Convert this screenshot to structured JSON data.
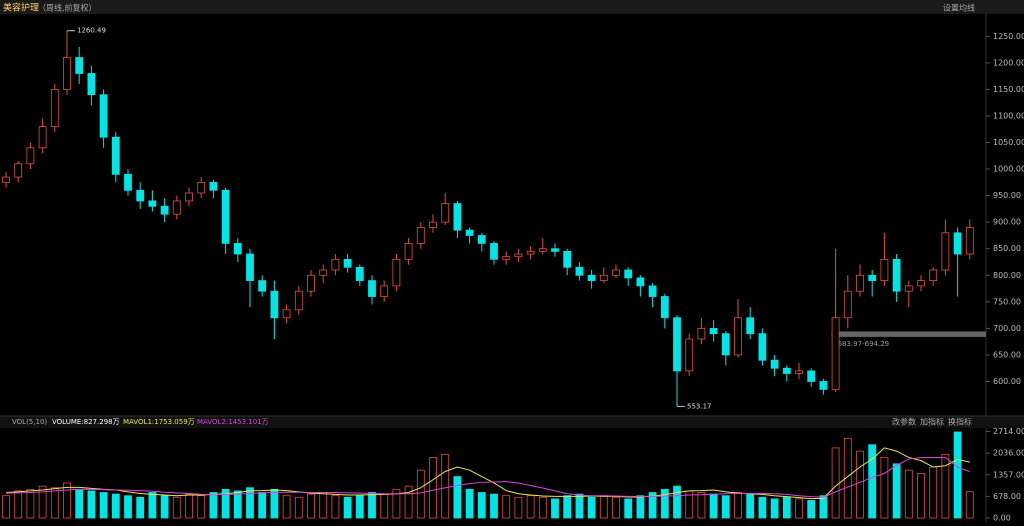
{
  "header": {
    "title": "美容护理",
    "subtitle": "（周线,前复权）",
    "settings": "设置均线"
  },
  "chart_data": {
    "type": "candlestick",
    "up_color": "#e84c3d",
    "down_color": "#00e5e5",
    "ylim": [
      535,
      1292
    ],
    "yticks": [
      {
        "value": 1250,
        "label": "1250.00"
      },
      {
        "value": 1200,
        "label": "1200.00"
      },
      {
        "value": 1150,
        "label": "1150.00"
      },
      {
        "value": 1100,
        "label": "1100.00"
      },
      {
        "value": 1050,
        "label": "1050.00"
      },
      {
        "value": 1000,
        "label": "1000.00"
      },
      {
        "value": 950,
        "label": "950.00"
      },
      {
        "value": 900,
        "label": "900.00"
      },
      {
        "value": 850,
        "label": "850.00"
      },
      {
        "value": 800,
        "label": "800.00"
      },
      {
        "value": 750,
        "label": "750.00"
      },
      {
        "value": 700,
        "label": "700.00"
      },
      {
        "value": 650,
        "label": "650.00"
      },
      {
        "value": 600,
        "label": "600.00"
      }
    ],
    "max_label": {
      "value": 1260.49,
      "label": "1260.49",
      "index": 5
    },
    "min_label": {
      "value": 553.17,
      "label": "553.17",
      "index": 55
    },
    "band": {
      "label": "683.97-694.29",
      "low": 683.97,
      "high": 694.29,
      "start": 68
    },
    "candles": [
      [
        975,
        995,
        965,
        985
      ],
      [
        985,
        1015,
        975,
        1010
      ],
      [
        1010,
        1050,
        1000,
        1040
      ],
      [
        1040,
        1095,
        1030,
        1080
      ],
      [
        1080,
        1160,
        1070,
        1150
      ],
      [
        1150,
        1260.49,
        1140,
        1210
      ],
      [
        1210,
        1230,
        1160,
        1180
      ],
      [
        1180,
        1195,
        1120,
        1140
      ],
      [
        1140,
        1150,
        1040,
        1060
      ],
      [
        1060,
        1070,
        975,
        990
      ],
      [
        990,
        1000,
        950,
        960
      ],
      [
        960,
        975,
        925,
        940
      ],
      [
        940,
        960,
        920,
        930
      ],
      [
        930,
        945,
        900,
        915
      ],
      [
        915,
        950,
        905,
        940
      ],
      [
        940,
        965,
        930,
        955
      ],
      [
        955,
        985,
        945,
        975
      ],
      [
        975,
        980,
        945,
        960
      ],
      [
        960,
        965,
        840,
        860
      ],
      [
        860,
        870,
        825,
        840
      ],
      [
        840,
        850,
        740,
        790
      ],
      [
        790,
        800,
        760,
        770
      ],
      [
        770,
        790,
        680,
        720
      ],
      [
        720,
        745,
        710,
        735
      ],
      [
        735,
        780,
        725,
        770
      ],
      [
        770,
        810,
        760,
        800
      ],
      [
        800,
        820,
        785,
        810
      ],
      [
        810,
        840,
        800,
        830
      ],
      [
        830,
        840,
        805,
        815
      ],
      [
        815,
        820,
        780,
        790
      ],
      [
        790,
        800,
        745,
        760
      ],
      [
        760,
        790,
        750,
        780
      ],
      [
        780,
        840,
        770,
        830
      ],
      [
        830,
        870,
        820,
        860
      ],
      [
        860,
        900,
        850,
        890
      ],
      [
        890,
        915,
        880,
        900
      ],
      [
        900,
        955,
        895,
        935
      ],
      [
        935,
        940,
        870,
        885
      ],
      [
        885,
        890,
        860,
        875
      ],
      [
        875,
        880,
        845,
        860
      ],
      [
        860,
        865,
        820,
        830
      ],
      [
        830,
        845,
        820,
        835
      ],
      [
        835,
        850,
        825,
        840
      ],
      [
        840,
        855,
        830,
        845
      ],
      [
        845,
        870,
        840,
        850
      ],
      [
        850,
        860,
        835,
        845
      ],
      [
        845,
        850,
        800,
        815
      ],
      [
        815,
        825,
        790,
        800
      ],
      [
        800,
        810,
        775,
        790
      ],
      [
        790,
        815,
        785,
        800
      ],
      [
        800,
        820,
        795,
        810
      ],
      [
        810,
        815,
        780,
        795
      ],
      [
        795,
        800,
        760,
        780
      ],
      [
        780,
        785,
        740,
        760
      ],
      [
        760,
        765,
        700,
        720
      ],
      [
        720,
        725,
        553.17,
        620
      ],
      [
        620,
        690,
        610,
        680
      ],
      [
        680,
        720,
        670,
        700
      ],
      [
        700,
        715,
        675,
        690
      ],
      [
        690,
        695,
        630,
        650
      ],
      [
        650,
        755,
        645,
        720
      ],
      [
        720,
        740,
        680,
        690
      ],
      [
        690,
        700,
        630,
        640
      ],
      [
        640,
        650,
        610,
        625
      ],
      [
        625,
        630,
        600,
        615
      ],
      [
        615,
        635,
        605,
        620
      ],
      [
        620,
        625,
        590,
        600
      ],
      [
        600,
        605,
        575,
        585
      ],
      [
        585,
        850,
        580,
        720
      ],
      [
        720,
        800,
        700,
        770
      ],
      [
        770,
        820,
        760,
        800
      ],
      [
        800,
        810,
        760,
        790
      ],
      [
        790,
        880,
        780,
        830
      ],
      [
        830,
        840,
        750,
        770
      ],
      [
        770,
        790,
        740,
        780
      ],
      [
        780,
        800,
        770,
        790
      ],
      [
        790,
        815,
        780,
        810
      ],
      [
        810,
        905,
        800,
        880
      ],
      [
        880,
        890,
        760,
        840
      ],
      [
        840,
        905,
        830,
        890
      ]
    ]
  },
  "volume_data": {
    "type": "bar",
    "indicator": "VOL(5,10)",
    "volume_label": "VOLUME:827.298万",
    "ma1_label": "MAVOL1:1753.059万",
    "ma2_label": "MAVOL2:1453.101万",
    "buttons": [
      "改参数",
      "加指标",
      "换指标"
    ],
    "ylim": [
      0,
      2950
    ],
    "yticks": [
      {
        "value": 2714,
        "label": "2714.00"
      },
      {
        "value": 2036,
        "label": "2036.00"
      },
      {
        "value": 1357,
        "label": "1357.00"
      },
      {
        "value": 678,
        "label": "678.00"
      },
      {
        "value": 0,
        "label": "0.00"
      }
    ],
    "values": [
      700,
      850,
      900,
      1000,
      950,
      1100,
      900,
      850,
      800,
      750,
      700,
      650,
      800,
      700,
      650,
      750,
      700,
      800,
      900,
      850,
      950,
      800,
      900,
      700,
      650,
      750,
      800,
      700,
      650,
      700,
      800,
      750,
      900,
      1000,
      1500,
      1900,
      2000,
      1300,
      900,
      800,
      750,
      700,
      650,
      700,
      650,
      600,
      700,
      750,
      650,
      700,
      650,
      600,
      700,
      800,
      900,
      1000,
      850,
      800,
      750,
      700,
      800,
      750,
      650,
      600,
      650,
      600,
      550,
      700,
      2200,
      2500,
      2100,
      2300,
      1900,
      1700,
      1500,
      1400,
      1600,
      2000,
      2700,
      827.298
    ],
    "series": [
      {
        "name": "MAVOL1",
        "color": "#e8e84a",
        "values": [
          800,
          820,
          850,
          880,
          920,
          960,
          960,
          930,
          900,
          880,
          820,
          770,
          740,
          720,
          700,
          720,
          720,
          740,
          760,
          800,
          850,
          860,
          880,
          860,
          820,
          780,
          760,
          740,
          720,
          720,
          730,
          740,
          760,
          800,
          950,
          1200,
          1460,
          1600,
          1500,
          1300,
          1100,
          860,
          760,
          720,
          690,
          680,
          680,
          680,
          690,
          680,
          680,
          660,
          660,
          690,
          730,
          800,
          850,
          860,
          880,
          820,
          780,
          760,
          740,
          700,
          670,
          640,
          610,
          620,
          1000,
          1300,
          1600,
          1850,
          2200,
          2100,
          1900,
          1800,
          1600,
          1640,
          1840,
          1753.059
        ]
      },
      {
        "name": "MAVOL2",
        "color": "#e040e0",
        "values": [
          780,
          790,
          800,
          820,
          850,
          880,
          900,
          900,
          890,
          880,
          870,
          860,
          840,
          810,
          790,
          770,
          740,
          730,
          740,
          750,
          770,
          790,
          800,
          810,
          810,
          800,
          800,
          800,
          790,
          780,
          770,
          760,
          760,
          760,
          790,
          870,
          950,
          1020,
          1080,
          1120,
          1130,
          1140,
          1100,
          1020,
          940,
          850,
          760,
          720,
          700,
          700,
          690,
          680,
          680,
          680,
          690,
          700,
          720,
          730,
          750,
          760,
          770,
          770,
          770,
          760,
          740,
          700,
          670,
          650,
          820,
          970,
          1120,
          1270,
          1400,
          1650,
          1850,
          1900,
          1900,
          1900,
          1600,
          1453.101
        ]
      }
    ]
  }
}
